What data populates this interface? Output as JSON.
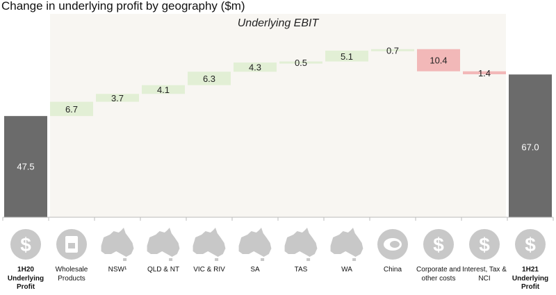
{
  "chart_data": {
    "type": "waterfall",
    "title": "Change in underlying profit by geography ($m)",
    "panel_label": "Underlying EBIT",
    "categories": [
      {
        "label": "1H20 Underlying Profit",
        "value": 47.5,
        "kind": "total",
        "icon": "dollar-icon"
      },
      {
        "label": "Wholesale Products",
        "value": 6.7,
        "kind": "increase",
        "icon": "product-bag-icon"
      },
      {
        "label": "NSW¹",
        "value": 3.7,
        "kind": "increase",
        "icon": "australia-map-nsw-icon"
      },
      {
        "label": "QLD & NT",
        "value": 4.1,
        "kind": "increase",
        "icon": "australia-map-qld-nt-icon"
      },
      {
        "label": "VIC & RIV",
        "value": 6.3,
        "kind": "increase",
        "icon": "australia-map-vic-icon"
      },
      {
        "label": "SA",
        "value": 4.3,
        "kind": "increase",
        "icon": "australia-map-sa-icon"
      },
      {
        "label": "TAS",
        "value": 0.5,
        "kind": "increase",
        "icon": "australia-map-tas-icon"
      },
      {
        "label": "WA",
        "value": 5.1,
        "kind": "increase",
        "icon": "australia-map-wa-icon"
      },
      {
        "label": "China",
        "value": 0.7,
        "kind": "increase",
        "icon": "meat-icon"
      },
      {
        "label": "Corporate and other costs",
        "value": -10.4,
        "kind": "decrease",
        "icon": "dollar-icon"
      },
      {
        "label": "Interest, Tax & NCI",
        "value": -1.4,
        "kind": "decrease",
        "icon": "dollar-icon"
      },
      {
        "label": "1H21 Underlying Profit",
        "value": 67.0,
        "kind": "total",
        "icon": "dollar-icon"
      }
    ],
    "ylim": [
      0,
      80
    ],
    "grid": false,
    "colors": {
      "total": "#6b6b6b",
      "increase": "#e2efd5",
      "decrease": "#f2b8b8",
      "panel": "#f8f6f2",
      "icon": "#c8c8c8",
      "axis": "#bbbbbb"
    }
  }
}
